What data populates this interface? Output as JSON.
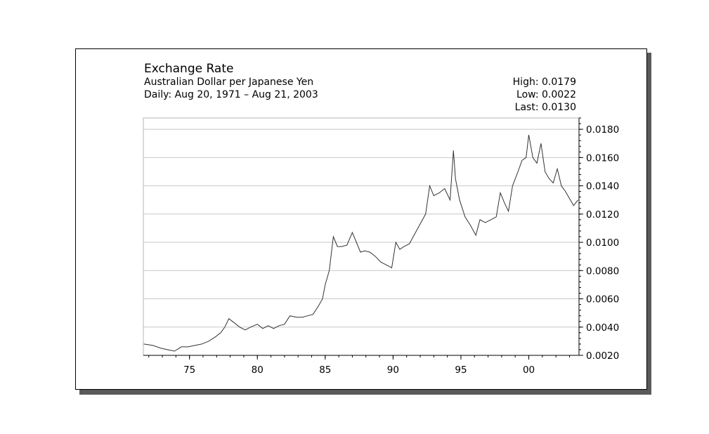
{
  "header": {
    "title": "Exchange Rate",
    "subtitle": "Australian Dollar per Japanese Yen",
    "date_range": "Daily: Aug 20, 1971 – Aug 21, 2003"
  },
  "stats": {
    "high": "High: 0.0179",
    "low": "Low: 0.0022",
    "last": "Last: 0.0130"
  },
  "chart_data": {
    "type": "line",
    "title": "Exchange Rate",
    "subtitle": "Australian Dollar per Japanese Yen",
    "xlabel": "",
    "ylabel": "",
    "xlim": [
      1971.6,
      2003.7
    ],
    "ylim": [
      0.002,
      0.0188
    ],
    "x_ticks": [
      {
        "value": 1975,
        "label": "75"
      },
      {
        "value": 1980,
        "label": "80"
      },
      {
        "value": 1985,
        "label": "85"
      },
      {
        "value": 1990,
        "label": "90"
      },
      {
        "value": 1995,
        "label": "95"
      },
      {
        "value": 2000,
        "label": "00"
      }
    ],
    "y_ticks": [
      {
        "value": 0.002,
        "label": "0.0020"
      },
      {
        "value": 0.004,
        "label": "0.0040"
      },
      {
        "value": 0.006,
        "label": "0.0060"
      },
      {
        "value": 0.008,
        "label": "0.0080"
      },
      {
        "value": 0.01,
        "label": "0.0100"
      },
      {
        "value": 0.012,
        "label": "0.0120"
      },
      {
        "value": 0.014,
        "label": "0.0140"
      },
      {
        "value": 0.016,
        "label": "0.0160"
      },
      {
        "value": 0.018,
        "label": "0.0180"
      }
    ],
    "grid": true,
    "axis_side": "right",
    "line_color": "#333333",
    "grid_color": "#c8c8c8",
    "series": [
      {
        "x": [
          1971.63,
          1972.3,
          1972.9,
          1973.4,
          1973.9,
          1974.4,
          1974.9,
          1975.4,
          1975.9,
          1976.4,
          1976.9,
          1977.3,
          1977.6,
          1977.9,
          1978.3,
          1978.7,
          1979.1,
          1979.5,
          1980.0,
          1980.4,
          1980.8,
          1981.2,
          1981.6,
          1982.0,
          1982.4,
          1982.9,
          1983.3,
          1983.7,
          1984.1,
          1984.5,
          1984.8,
          1985.0,
          1985.3,
          1985.6,
          1985.9,
          1986.2,
          1986.6,
          1987.0,
          1987.3,
          1987.6,
          1987.9,
          1988.3,
          1988.7,
          1989.1,
          1989.5,
          1989.9,
          1990.2,
          1990.5,
          1990.8,
          1991.2,
          1991.6,
          1992.0,
          1992.4,
          1992.7,
          1993.0,
          1993.4,
          1993.8,
          1994.2,
          1994.45,
          1994.6,
          1994.9,
          1995.3,
          1995.7,
          1996.1,
          1996.4,
          1996.8,
          1997.2,
          1997.6,
          1997.9,
          1998.2,
          1998.5,
          1998.8,
          1999.2,
          1999.5,
          1999.8,
          2000.0,
          2000.3,
          2000.6,
          2000.9,
          2001.2,
          2001.5,
          2001.8,
          2002.1,
          2002.4,
          2002.7,
          2003.0,
          2003.3,
          2003.63
        ],
        "y": [
          0.0028,
          0.0027,
          0.0025,
          0.0024,
          0.0023,
          0.0026,
          0.0026,
          0.0027,
          0.0028,
          0.003,
          0.0033,
          0.0036,
          0.004,
          0.0046,
          0.0043,
          0.004,
          0.0038,
          0.004,
          0.0042,
          0.0039,
          0.0041,
          0.0039,
          0.0041,
          0.0042,
          0.0048,
          0.0047,
          0.0047,
          0.0048,
          0.0049,
          0.0055,
          0.006,
          0.007,
          0.008,
          0.0104,
          0.0097,
          0.0097,
          0.0098,
          0.0107,
          0.01,
          0.0093,
          0.0094,
          0.0093,
          0.009,
          0.0086,
          0.0084,
          0.0082,
          0.01,
          0.0095,
          0.0097,
          0.0099,
          0.0106,
          0.0113,
          0.012,
          0.014,
          0.0133,
          0.0135,
          0.0138,
          0.013,
          0.0165,
          0.0145,
          0.013,
          0.0118,
          0.0112,
          0.0105,
          0.0116,
          0.0114,
          0.0116,
          0.0118,
          0.0135,
          0.0128,
          0.0122,
          0.014,
          0.015,
          0.0158,
          0.016,
          0.0176,
          0.016,
          0.0156,
          0.017,
          0.015,
          0.0145,
          0.0142,
          0.0152,
          0.014,
          0.0136,
          0.0131,
          0.0126,
          0.013
        ]
      }
    ]
  }
}
